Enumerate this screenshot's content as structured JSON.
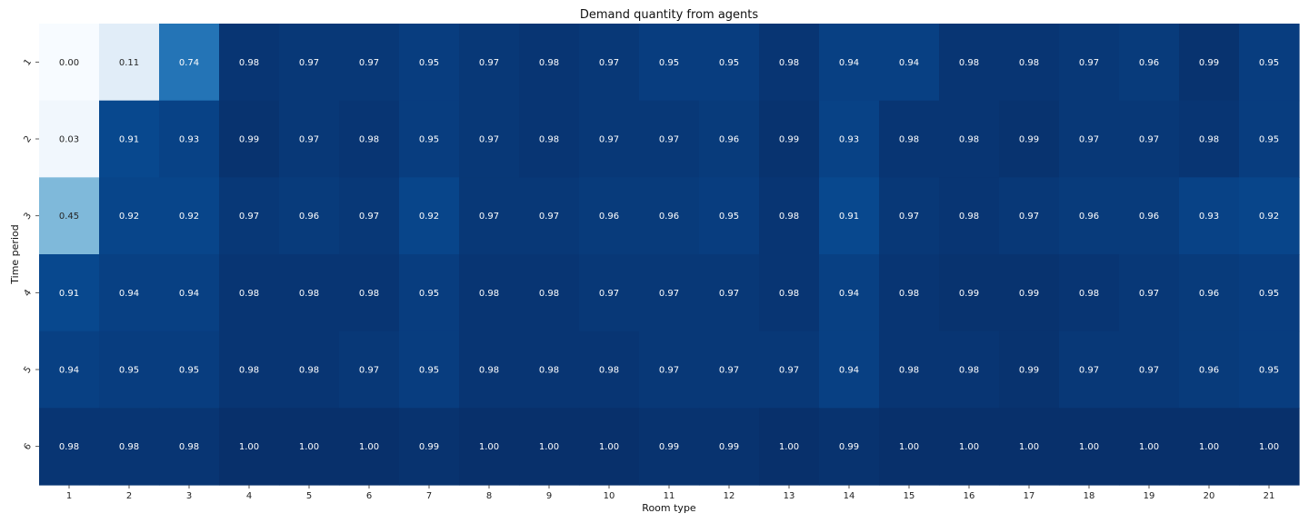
{
  "chart_data": {
    "type": "heatmap",
    "title": "Demand quantity from agents",
    "xlabel": "Room type",
    "ylabel": "Time period",
    "x_categories": [
      "1",
      "2",
      "3",
      "4",
      "5",
      "6",
      "7",
      "8",
      "9",
      "10",
      "11",
      "12",
      "13",
      "14",
      "15",
      "16",
      "17",
      "18",
      "19",
      "20",
      "21"
    ],
    "y_categories": [
      "1",
      "2",
      "3",
      "4",
      "5",
      "6"
    ],
    "values": [
      [
        0.0,
        0.11,
        0.74,
        0.98,
        0.97,
        0.97,
        0.95,
        0.97,
        0.98,
        0.97,
        0.95,
        0.95,
        0.98,
        0.94,
        0.94,
        0.98,
        0.98,
        0.97,
        0.96,
        0.99,
        0.95
      ],
      [
        0.03,
        0.91,
        0.93,
        0.99,
        0.97,
        0.98,
        0.95,
        0.97,
        0.98,
        0.97,
        0.97,
        0.96,
        0.99,
        0.93,
        0.98,
        0.98,
        0.99,
        0.97,
        0.97,
        0.98,
        0.95
      ],
      [
        0.45,
        0.92,
        0.92,
        0.97,
        0.96,
        0.97,
        0.92,
        0.97,
        0.97,
        0.96,
        0.96,
        0.95,
        0.98,
        0.91,
        0.97,
        0.98,
        0.97,
        0.96,
        0.96,
        0.93,
        0.92
      ],
      [
        0.91,
        0.94,
        0.94,
        0.98,
        0.98,
        0.98,
        0.95,
        0.98,
        0.98,
        0.97,
        0.97,
        0.97,
        0.98,
        0.94,
        0.98,
        0.99,
        0.99,
        0.98,
        0.97,
        0.96,
        0.95
      ],
      [
        0.94,
        0.95,
        0.95,
        0.98,
        0.98,
        0.97,
        0.95,
        0.98,
        0.98,
        0.98,
        0.97,
        0.97,
        0.97,
        0.94,
        0.98,
        0.98,
        0.99,
        0.97,
        0.97,
        0.96,
        0.95
      ],
      [
        0.98,
        0.98,
        0.98,
        1.0,
        1.0,
        1.0,
        0.99,
        1.0,
        1.0,
        1.0,
        0.99,
        0.99,
        1.0,
        0.99,
        1.0,
        1.0,
        1.0,
        1.0,
        1.0,
        1.0,
        1.0
      ]
    ],
    "colormap": "Blues",
    "colorbar": false,
    "grid": false,
    "annotations": "cell values shown with two decimals"
  }
}
